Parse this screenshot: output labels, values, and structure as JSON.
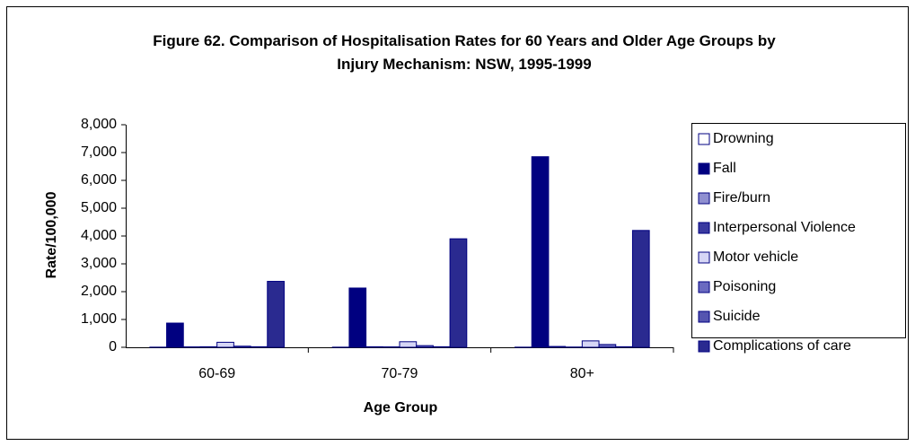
{
  "chart_data": {
    "type": "bar",
    "title": "Figure 62.  Comparison of Hospitalisation Rates for 60 Years and Older Age Groups by Injury Mechanism: NSW, 1995-1999",
    "x_label": "Age Group",
    "y_label": "Rate/100,000",
    "categories": [
      "60-69",
      "70-79",
      "80+"
    ],
    "series": [
      {
        "name": "Drowning",
        "color": "#ffffff",
        "values": [
          5,
          5,
          5
        ]
      },
      {
        "name": "Fall",
        "color": "#000080",
        "values": [
          870,
          2130,
          6850
        ]
      },
      {
        "name": "Fire/burn",
        "color": "#8f8fd0",
        "values": [
          15,
          20,
          30
        ]
      },
      {
        "name": "Interpersonal Violence",
        "color": "#3a3aa0",
        "values": [
          20,
          15,
          10
        ]
      },
      {
        "name": "Motor vehicle",
        "color": "#d6d6f5",
        "values": [
          180,
          200,
          230
        ]
      },
      {
        "name": "Poisoning",
        "color": "#6a6ac0",
        "values": [
          40,
          60,
          100
        ]
      },
      {
        "name": "Suicide",
        "color": "#5555b0",
        "values": [
          20,
          20,
          20
        ]
      },
      {
        "name": "Complications of care",
        "color": "#2a2a90",
        "values": [
          2370,
          3900,
          4200
        ]
      }
    ],
    "ylim": [
      0,
      8000
    ],
    "yticks": [
      0,
      {
        "value": 1000,
        "label": "1,000"
      },
      {
        "value": 2000,
        "label": "2,000"
      },
      {
        "value": 3000,
        "label": "3,000"
      },
      {
        "value": 4000,
        "label": "4,000"
      },
      {
        "value": 5000,
        "label": "5,000"
      },
      {
        "value": 6000,
        "label": "6,000"
      },
      {
        "value": 7000,
        "label": "7,000"
      },
      {
        "value": 8000,
        "label": "8,000"
      }
    ],
    "legend": "right"
  }
}
